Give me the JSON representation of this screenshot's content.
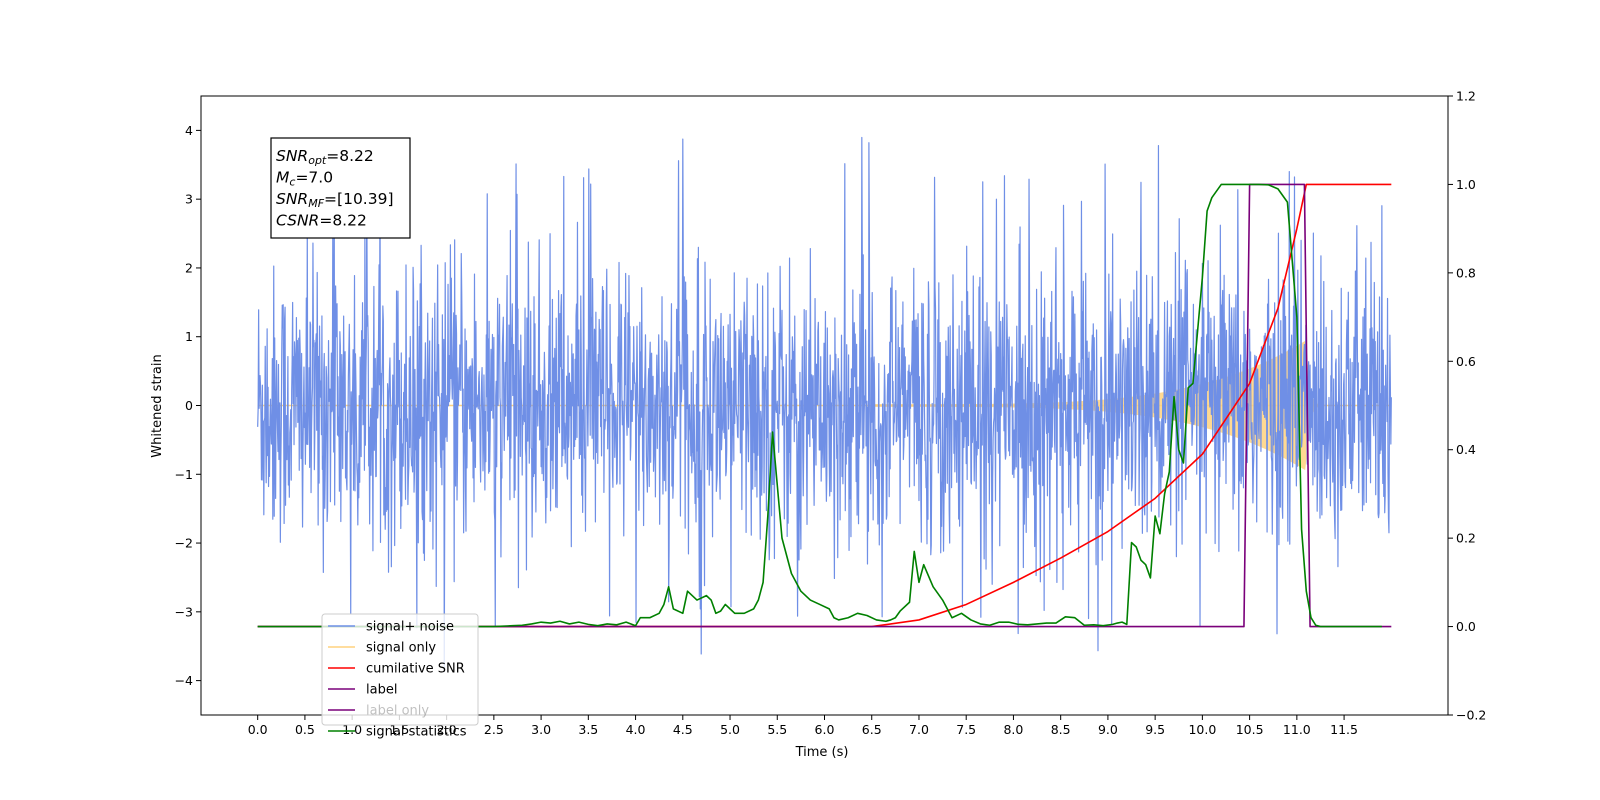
{
  "chart_data": {
    "type": "line",
    "title": "",
    "xlabel": "Time (s)",
    "ylabel": "Whitened strain",
    "xlim": [
      -0.6,
      12.6
    ],
    "ylim": [
      -4.5,
      4.5
    ],
    "ylim_right": [
      -0.2,
      1.2
    ],
    "grid": false,
    "legend_position": "lower-left",
    "x_ticks": [
      "0.0",
      "0.5",
      "1.0",
      "1.5",
      "2.0",
      "2.5",
      "3.0",
      "3.5",
      "4.0",
      "4.5",
      "5.0",
      "5.5",
      "6.0",
      "6.5",
      "7.0",
      "7.5",
      "8.0",
      "8.5",
      "9.0",
      "9.5",
      "10.0",
      "10.5",
      "11.0",
      "11.5"
    ],
    "y_ticks_left": [
      "4",
      "3",
      "2",
      "1",
      "0",
      "−1",
      "−2",
      "−3",
      "−4"
    ],
    "y_ticks_right": [
      "1.2",
      "1.0",
      "0.8",
      "0.6",
      "0.4",
      "0.2",
      "0.0",
      "−0.2"
    ],
    "annotation": [
      {
        "sym": "SNR",
        "sub": "opt",
        "rest": "=8.22"
      },
      {
        "sym": "M",
        "sub": "c",
        "rest": "=7.0"
      },
      {
        "sym": "SNR",
        "sub": "MF",
        "rest": "=[10.39]"
      },
      {
        "sym": "CSNR",
        "sub": "",
        "rest": "=8.22"
      }
    ],
    "series": [
      {
        "name": "signal+ noise",
        "axis": "left",
        "color": "#6f8fe6",
        "kind": "noise",
        "x_range": [
          0,
          12
        ],
        "std": 1.0,
        "peak_max": 4.1,
        "peak_min": -4.05
      },
      {
        "name": "signal only",
        "axis": "left",
        "color": "#ffd27f",
        "kind": "chirp",
        "x_range": [
          0,
          12
        ],
        "onset": 6.5,
        "merger": 11.1,
        "peak_amplitude": 0.95
      },
      {
        "name": "cumilative SNR",
        "axis": "right",
        "color": "#ff0000",
        "x": [
          0,
          6.5,
          7.0,
          7.5,
          8.0,
          8.5,
          9.0,
          9.5,
          10.0,
          10.5,
          10.8,
          11.0,
          11.1,
          12.0
        ],
        "y": [
          0,
          0,
          0.015,
          0.05,
          0.1,
          0.155,
          0.215,
          0.29,
          0.39,
          0.55,
          0.72,
          0.9,
          1.0,
          1.0
        ]
      },
      {
        "name": "label",
        "axis": "right",
        "color": "#7a007a",
        "x": [
          0,
          10.44,
          10.5,
          11.08,
          11.14,
          12.0
        ],
        "y": [
          0,
          0,
          1,
          1,
          0,
          0
        ]
      },
      {
        "name": "label only",
        "axis": "right",
        "color": "#7a007a",
        "kind": "hidden-label"
      },
      {
        "name": "signal statistics",
        "axis": "right",
        "color": "#008000",
        "x": [
          0,
          2.5,
          2.7,
          2.8,
          2.9,
          3.0,
          3.1,
          3.2,
          3.3,
          3.4,
          3.5,
          3.6,
          3.7,
          3.8,
          3.9,
          4.0,
          4.05,
          4.15,
          4.25,
          4.3,
          4.35,
          4.4,
          4.5,
          4.55,
          4.65,
          4.75,
          4.8,
          4.85,
          4.9,
          4.95,
          5.0,
          5.05,
          5.15,
          5.25,
          5.3,
          5.35,
          5.4,
          5.45,
          5.5,
          5.55,
          5.65,
          5.75,
          5.85,
          5.95,
          6.05,
          6.1,
          6.15,
          6.25,
          6.35,
          6.45,
          6.55,
          6.65,
          6.7,
          6.75,
          6.8,
          6.9,
          6.95,
          7.0,
          7.05,
          7.15,
          7.25,
          7.35,
          7.45,
          7.55,
          7.65,
          7.75,
          7.85,
          7.95,
          8.05,
          8.15,
          8.25,
          8.35,
          8.45,
          8.5,
          8.55,
          8.65,
          8.75,
          8.85,
          8.95,
          9.05,
          9.1,
          9.15,
          9.2,
          9.25,
          9.3,
          9.35,
          9.4,
          9.45,
          9.5,
          9.55,
          9.6,
          9.65,
          9.7,
          9.75,
          9.8,
          9.85,
          9.9,
          9.95,
          10.0,
          10.05,
          10.1,
          10.2,
          10.3,
          10.4,
          10.5,
          10.6,
          10.7,
          10.8,
          10.9,
          11.0,
          11.05,
          11.1,
          11.15,
          11.2,
          11.25,
          11.3,
          11.4,
          11.5,
          11.7,
          11.9
        ],
        "y": [
          0,
          0,
          0.002,
          0.003,
          0.006,
          0.01,
          0.008,
          0.012,
          0.006,
          0.01,
          0.005,
          0.002,
          0.006,
          0.004,
          0.01,
          0.002,
          0.02,
          0.02,
          0.03,
          0.05,
          0.09,
          0.04,
          0.03,
          0.08,
          0.06,
          0.07,
          0.06,
          0.03,
          0.035,
          0.05,
          0.04,
          0.03,
          0.03,
          0.04,
          0.06,
          0.1,
          0.25,
          0.44,
          0.32,
          0.2,
          0.12,
          0.08,
          0.06,
          0.05,
          0.04,
          0.02,
          0.015,
          0.02,
          0.03,
          0.025,
          0.015,
          0.012,
          0.015,
          0.02,
          0.035,
          0.055,
          0.17,
          0.1,
          0.14,
          0.09,
          0.06,
          0.02,
          0.03,
          0.015,
          0.006,
          0.003,
          0.01,
          0.01,
          0.005,
          0.004,
          0.006,
          0.008,
          0.008,
          0.015,
          0.022,
          0.02,
          0.003,
          0.004,
          0.002,
          0.005,
          0.008,
          0.01,
          0.005,
          0.19,
          0.18,
          0.15,
          0.14,
          0.11,
          0.25,
          0.21,
          0.3,
          0.35,
          0.52,
          0.4,
          0.37,
          0.54,
          0.55,
          0.67,
          0.79,
          0.94,
          0.97,
          1.0,
          1.0,
          1.0,
          1.0,
          1.0,
          0.999,
          0.99,
          0.96,
          0.7,
          0.22,
          0.08,
          0.02,
          0.003,
          0,
          0,
          0,
          0,
          0,
          0
        ]
      }
    ]
  }
}
